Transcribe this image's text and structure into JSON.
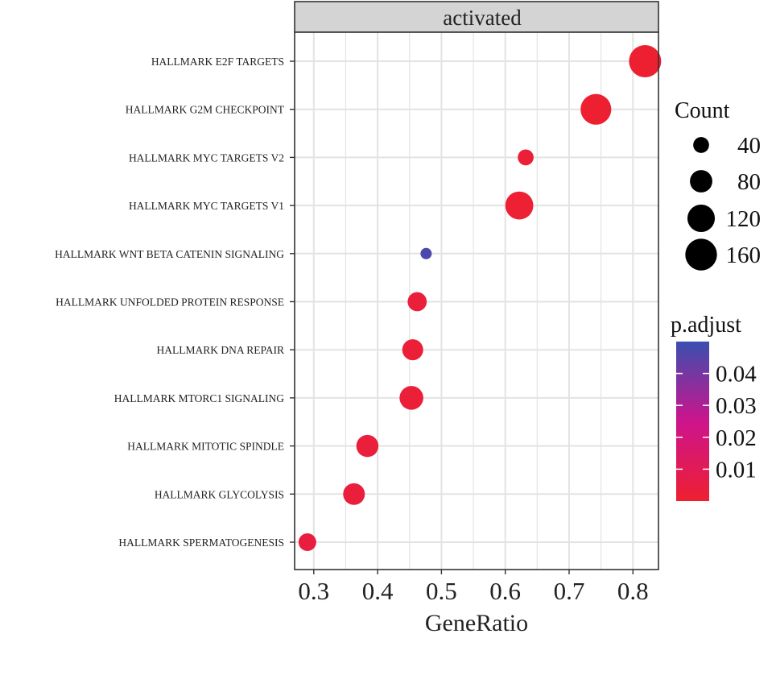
{
  "chart_data": {
    "type": "scatter",
    "facet_label": "activated",
    "xlabel": "GeneRatio",
    "ylabel": "",
    "xlim": [
      0.27,
      0.84
    ],
    "x_ticks": [
      "0.3",
      "0.4",
      "0.5",
      "0.6",
      "0.7",
      "0.8"
    ],
    "grid": true,
    "categories": [
      "HALLMARK E2F TARGETS",
      "HALLMARK G2M CHECKPOINT",
      "HALLMARK MYC TARGETS V2",
      "HALLMARK MYC TARGETS V1",
      "HALLMARK WNT BETA CATENIN SIGNALING",
      "HALLMARK UNFOLDED PROTEIN RESPONSE",
      "HALLMARK DNA REPAIR",
      "HALLMARK MTORC1 SIGNALING",
      "HALLMARK MITOTIC SPINDLE",
      "HALLMARK GLYCOLYSIS",
      "HALLMARK SPERMATOGENESIS"
    ],
    "points": [
      {
        "category": "HALLMARK E2F TARGETS",
        "gene_ratio": 0.819,
        "count": 165,
        "p_adjust": 0.0005
      },
      {
        "category": "HALLMARK G2M CHECKPOINT",
        "gene_ratio": 0.742,
        "count": 150,
        "p_adjust": 0.0005
      },
      {
        "category": "HALLMARK MYC TARGETS V2",
        "gene_ratio": 0.632,
        "count": 40,
        "p_adjust": 0.002
      },
      {
        "category": "HALLMARK MYC TARGETS V1",
        "gene_ratio": 0.622,
        "count": 125,
        "p_adjust": 0.001
      },
      {
        "category": "HALLMARK WNT BETA CATENIN SIGNALING",
        "gene_ratio": 0.476,
        "count": 20,
        "p_adjust": 0.047
      },
      {
        "category": "HALLMARK UNFOLDED PROTEIN RESPONSE",
        "gene_ratio": 0.462,
        "count": 58,
        "p_adjust": 0.003
      },
      {
        "category": "HALLMARK DNA REPAIR",
        "gene_ratio": 0.455,
        "count": 70,
        "p_adjust": 0.002
      },
      {
        "category": "HALLMARK MTORC1 SIGNALING",
        "gene_ratio": 0.453,
        "count": 90,
        "p_adjust": 0.002
      },
      {
        "category": "HALLMARK MITOTIC SPINDLE",
        "gene_ratio": 0.384,
        "count": 78,
        "p_adjust": 0.003
      },
      {
        "category": "HALLMARK GLYCOLYSIS",
        "gene_ratio": 0.363,
        "count": 75,
        "p_adjust": 0.003
      },
      {
        "category": "HALLMARK SPERMATOGENESIS",
        "gene_ratio": 0.29,
        "count": 50,
        "p_adjust": 0.004
      }
    ],
    "legend_size": {
      "title": "Count",
      "values": [
        40,
        80,
        120,
        160
      ],
      "labels": [
        "40",
        "80",
        "120",
        "160"
      ],
      "placement": "right"
    },
    "legend_color": {
      "title": "p.adjust",
      "min": 0,
      "max": 0.05,
      "ticks": [
        0.04,
        0.03,
        0.02,
        0.01
      ],
      "tick_labels": [
        "0.04",
        "0.03",
        "0.02",
        "0.01"
      ],
      "low_color": "#ee2030",
      "high_color": "#3a4fb0",
      "placement": "right"
    }
  }
}
